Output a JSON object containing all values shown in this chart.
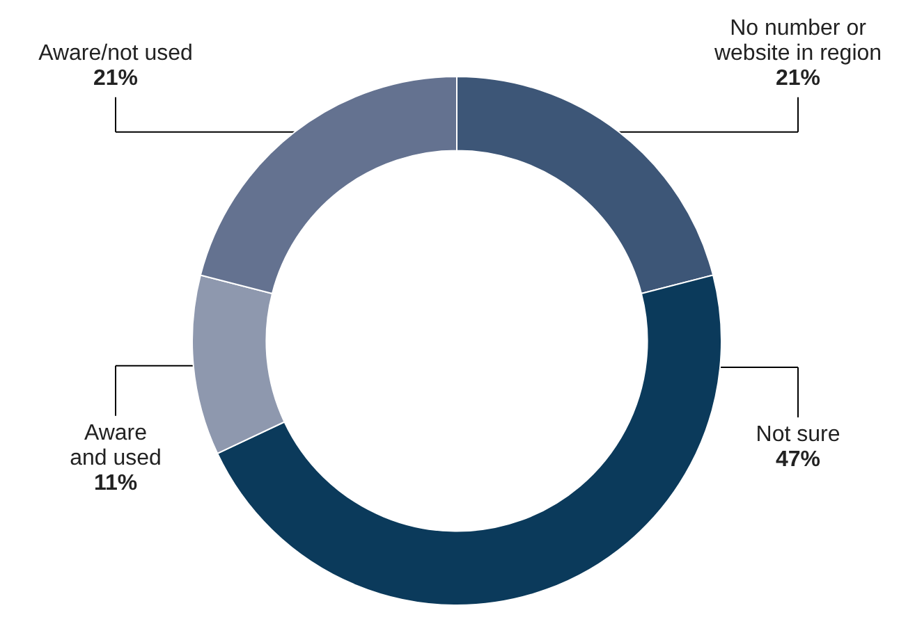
{
  "chart_data": {
    "type": "donut",
    "categories": [
      "No number or\nwebsite in region",
      "Not sure",
      "Aware\nand used",
      "Aware/not used"
    ],
    "values": [
      21,
      47,
      11,
      21
    ],
    "value_labels": [
      "21%",
      "47%",
      "11%",
      "21%"
    ],
    "colors": [
      "#3d5677",
      "#0b3a5b",
      "#8e98ae",
      "#647290"
    ]
  }
}
